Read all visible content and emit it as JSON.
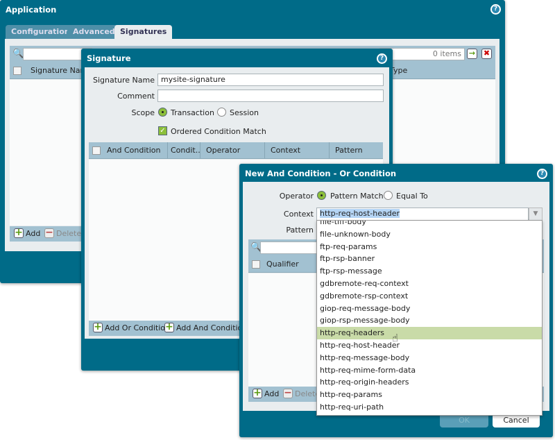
{
  "application": {
    "title": "Application",
    "tabs": [
      {
        "label": "Configuration"
      },
      {
        "label": "Advanced"
      },
      {
        "label": "Signatures",
        "active": true
      }
    ],
    "search": {
      "value": "",
      "count": "0 items"
    },
    "table": {
      "columns": [
        "Signature Name",
        "Type"
      ]
    },
    "toolbar": {
      "add": "Add",
      "delete": "Delete"
    }
  },
  "signature": {
    "title": "Signature",
    "name_label": "Signature Name",
    "name_value": "mysite-signature",
    "comment_label": "Comment",
    "comment_value": "",
    "scope_label": "Scope",
    "scope_options": [
      "Transaction",
      "Session"
    ],
    "scope_selected": "Transaction",
    "ordered_label": "Ordered Condition Match",
    "ordered_checked": true,
    "table": {
      "columns": [
        "And Condition",
        "Condit...",
        "Operator",
        "Context",
        "Pattern"
      ]
    },
    "toolbar": {
      "add_or": "Add Or Condition",
      "add_and": "Add And Condition"
    }
  },
  "condition": {
    "title": "New And Condition - Or Condition",
    "operator_label": "Operator",
    "operator_options": [
      "Pattern Match",
      "Equal To"
    ],
    "operator_selected": "Pattern Match",
    "context_label": "Context",
    "context_value": "http-req-host-header",
    "pattern_label": "Pattern",
    "table": {
      "columns": [
        "Qualifier"
      ]
    },
    "toolbar": {
      "add": "Add",
      "delete": "Delete"
    },
    "ok": "OK",
    "cancel": "Cancel",
    "dropdown": {
      "options": [
        "file-tiff-body",
        "file-unknown-body",
        "ftp-req-params",
        "ftp-rsp-banner",
        "ftp-rsp-message",
        "gdbremote-req-context",
        "gdbremote-rsp-context",
        "giop-req-message-body",
        "giop-rsp-message-body",
        "http-req-headers",
        "http-req-host-header",
        "http-req-message-body",
        "http-req-mime-form-data",
        "http-req-origin-headers",
        "http-req-params",
        "http-req-uri-path"
      ],
      "hovered": "http-req-headers"
    }
  },
  "colors": {
    "window": "#006b88",
    "header": "#a2c1d1",
    "highlight": "#c9dba8",
    "accent": "#8cbf3a"
  }
}
